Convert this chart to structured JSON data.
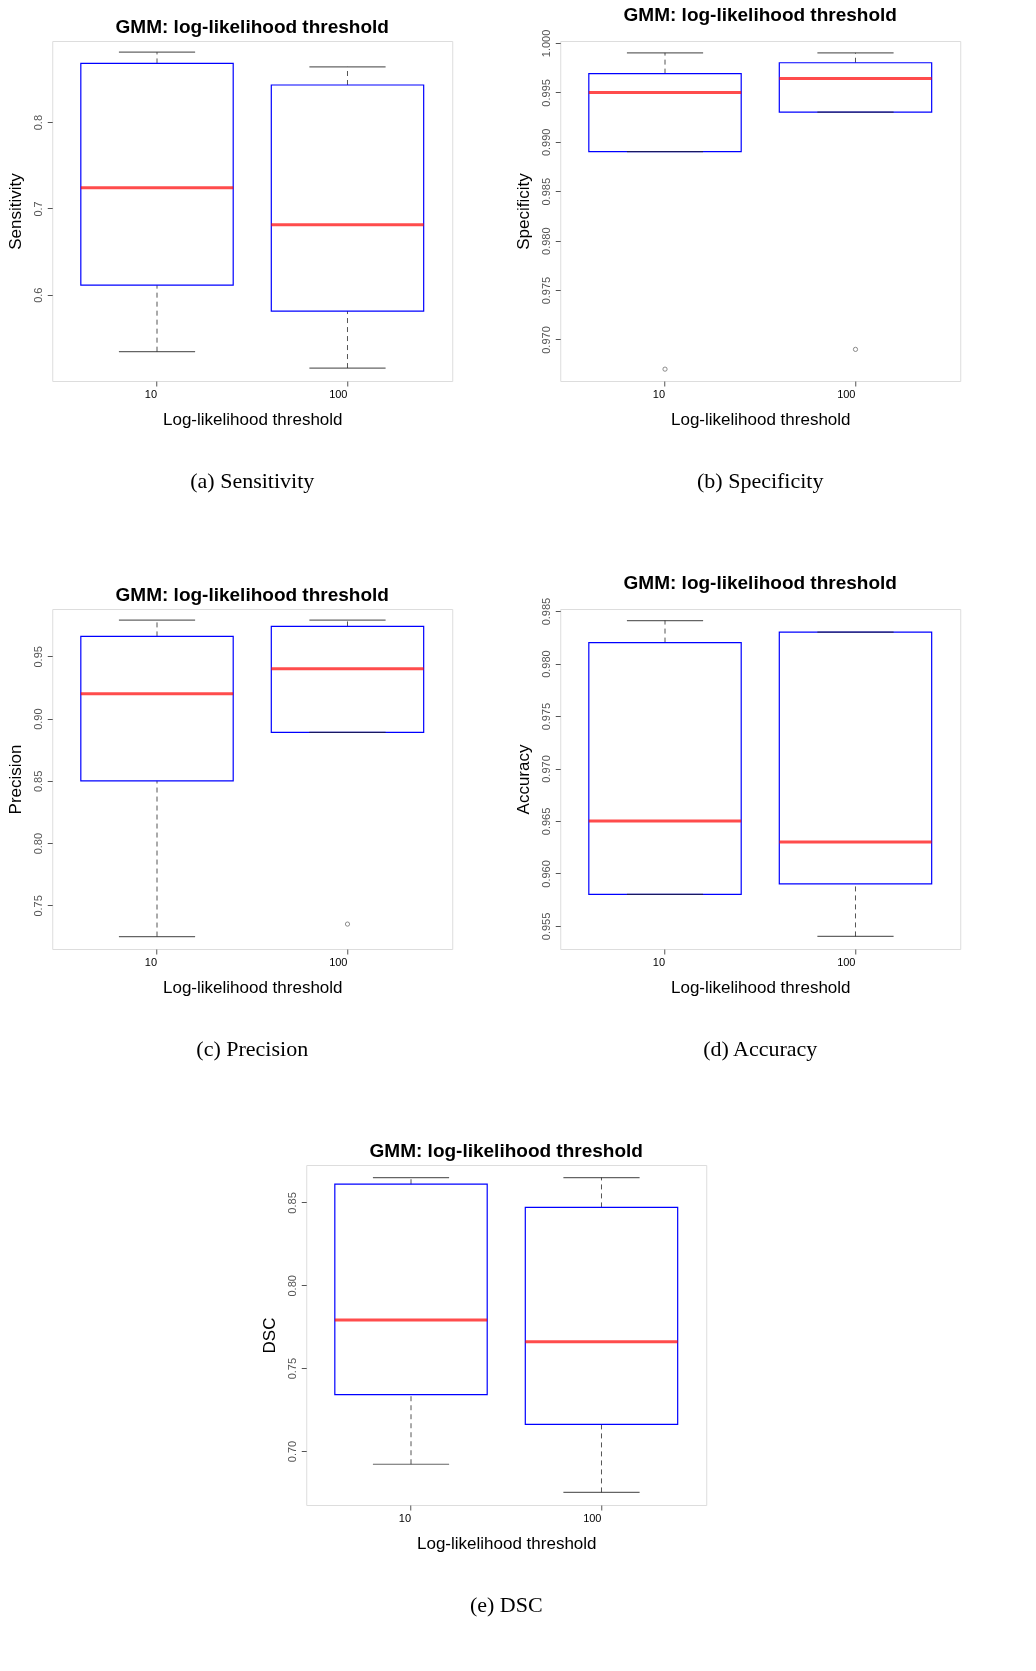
{
  "chart_data": [
    {
      "type": "box",
      "title": "GMM: log-likelihood threshold",
      "xlabel": "Log-likelihood threshold",
      "ylabel": "Sensitivity",
      "categories": [
        "10",
        "100"
      ],
      "series": [
        {
          "boxes": [
            {
              "low": 0.534,
              "q1": 0.611,
              "median": 0.724,
              "q3": 0.868,
              "high": 0.881
            },
            {
              "low": 0.515,
              "q1": 0.581,
              "median": 0.681,
              "q3": 0.843,
              "high": 0.864
            }
          ]
        }
      ],
      "ylim": [
        0.5,
        0.894
      ],
      "yticks": [
        0.6,
        0.7,
        0.8
      ],
      "grid": false,
      "annotations": [
        "(a) Sensitivity"
      ]
    },
    {
      "type": "box",
      "title": "GMM: log-likelihood threshold",
      "xlabel": "Log-likelihood threshold",
      "ylabel": "Specificity",
      "categories": [
        "10",
        "100"
      ],
      "series": [
        {
          "boxes": [
            {
              "low": 0.989,
              "q1": 0.989,
              "median": 0.995,
              "q3": 0.9969,
              "high": 0.999,
              "outliers": [
                0.967
              ]
            },
            {
              "low": 0.993,
              "q1": 0.993,
              "median": 0.9964,
              "q3": 0.998,
              "high": 0.999,
              "outliers": [
                0.969
              ]
            }
          ]
        }
      ],
      "ylim": [
        0.9658,
        1.0002
      ],
      "yticks": [
        {
          "value": 0.97,
          "label": "0.970"
        },
        0.975,
        {
          "value": 0.98,
          "label": "0.980"
        },
        0.985,
        {
          "value": 0.99,
          "label": "0.990"
        },
        0.995,
        {
          "value": 1.0,
          "label": "1.000"
        }
      ],
      "grid": false,
      "annotations": [
        "(b) Specificity"
      ]
    },
    {
      "type": "box",
      "title": "GMM: log-likelihood threshold",
      "xlabel": "Log-likelihood threshold",
      "ylabel": "Precision",
      "categories": [
        "10",
        "100"
      ],
      "series": [
        {
          "boxes": [
            {
              "low": 0.725,
              "q1": 0.85,
              "median": 0.92,
              "q3": 0.966,
              "high": 0.979
            },
            {
              "low": 0.889,
              "q1": 0.889,
              "median": 0.94,
              "q3": 0.974,
              "high": 0.979,
              "outliers": [
                0.735
              ]
            }
          ]
        }
      ],
      "ylim": [
        0.715,
        0.988
      ],
      "yticks": [
        0.75,
        {
          "value": 0.8,
          "label": "0.80"
        },
        0.85,
        {
          "value": 0.9,
          "label": "0.90"
        },
        0.95
      ],
      "grid": false,
      "annotations": [
        "(c) Precision"
      ]
    },
    {
      "type": "box",
      "title": "GMM: log-likelihood threshold",
      "xlabel": "Log-likelihood threshold",
      "ylabel": "Accuracy",
      "categories": [
        "10",
        "100"
      ],
      "series": [
        {
          "boxes": [
            {
              "low": 0.958,
              "q1": 0.958,
              "median": 0.965,
              "q3": 0.982,
              "high": 0.9841
            },
            {
              "low": 0.954,
              "q1": 0.959,
              "median": 0.963,
              "q3": 0.983,
              "high": 0.983
            }
          ]
        }
      ],
      "ylim": [
        0.9528,
        0.9852
      ],
      "yticks": [
        0.955,
        {
          "value": 0.96,
          "label": "0.960"
        },
        0.965,
        {
          "value": 0.97,
          "label": "0.970"
        },
        0.975,
        {
          "value": 0.98,
          "label": "0.980"
        },
        0.985
      ],
      "grid": false,
      "annotations": [
        "(d) Accuracy"
      ]
    },
    {
      "type": "box",
      "title": "GMM: log-likelihood threshold",
      "xlabel": "Log-likelihood threshold",
      "ylabel": "DSC",
      "categories": [
        "10",
        "100"
      ],
      "series": [
        {
          "boxes": [
            {
              "low": 0.692,
              "q1": 0.734,
              "median": 0.779,
              "q3": 0.861,
              "high": 0.865
            },
            {
              "low": 0.675,
              "q1": 0.716,
              "median": 0.766,
              "q3": 0.847,
              "high": 0.865
            }
          ]
        }
      ],
      "ylim": [
        0.6674,
        0.8726
      ],
      "yticks": [
        {
          "value": 0.7,
          "label": "0.70"
        },
        0.75,
        {
          "value": 0.8,
          "label": "0.80"
        },
        0.85
      ],
      "grid": false,
      "annotations": [
        "(e) DSC"
      ]
    }
  ]
}
